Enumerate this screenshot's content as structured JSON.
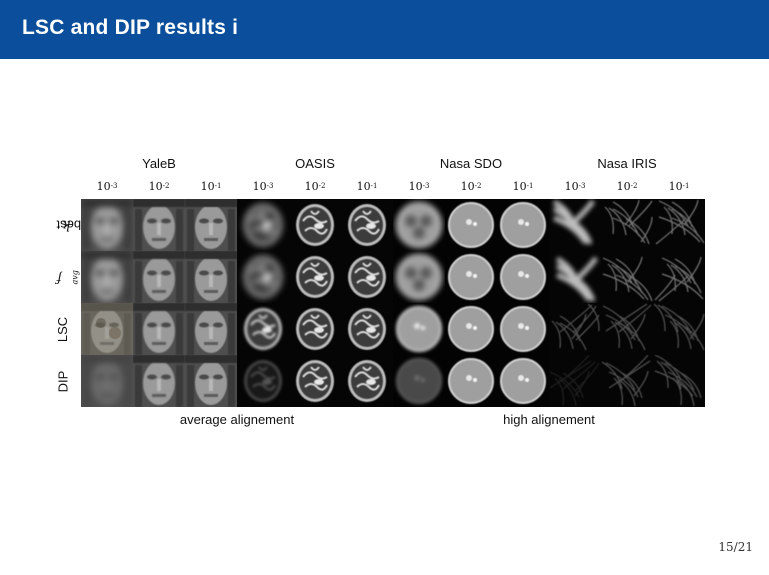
{
  "slide": {
    "title": "LSC and DIP results i",
    "page_number": "15/21"
  },
  "datasets": [
    "YaleB",
    "OASIS",
    "Nasa SDO",
    "Nasa IRIS"
  ],
  "exponents": [
    "-3",
    "-2",
    "-1"
  ],
  "exponent_base": "10",
  "rows": [
    {
      "label": "k-best",
      "math_part": "k",
      "text_part": "-best"
    },
    {
      "label": "f_avg",
      "math_part": "f",
      "sub_part": "avg"
    },
    {
      "label": "LSC"
    },
    {
      "label": "DIP"
    }
  ],
  "alignment_labels": [
    "average alignement",
    "high alignement"
  ],
  "colors": {
    "header": "#0b4e9b",
    "image_background": "#0c0c0c"
  }
}
